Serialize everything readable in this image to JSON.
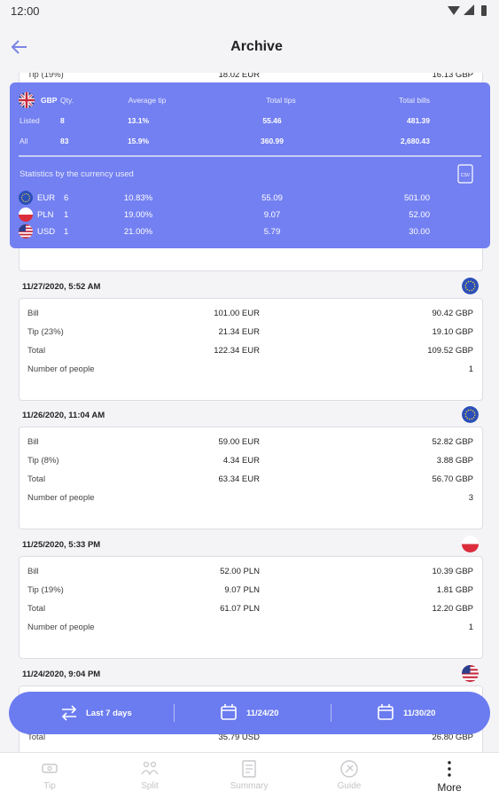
{
  "status": {
    "time": "12:00"
  },
  "header": {
    "title": "Archive"
  },
  "partial_row": {
    "label": "Tip (19%)",
    "local": "18.02 EUR",
    "gbp": "16.13 GBP"
  },
  "summary": {
    "columns": [
      "GBP",
      "Qty.",
      "Average tip",
      "Total tips",
      "Total bills"
    ],
    "rows": [
      [
        "Listed",
        "8",
        "13.1%",
        "55.46",
        "481.39"
      ],
      [
        "All",
        "83",
        "15.9%",
        "360.99",
        "2,680.43"
      ]
    ],
    "section_title": "Statistics by the currency used",
    "currencies": [
      [
        "EUR",
        "6",
        "10.83%",
        "55.09",
        "501.00"
      ],
      [
        "PLN",
        "1",
        "19.00%",
        "9.07",
        "52.00"
      ],
      [
        "USD",
        "1",
        "21.00%",
        "5.79",
        "30.00"
      ]
    ]
  },
  "entries": [
    {
      "date": "11/27/2020, 5:52 AM",
      "rows": [
        {
          "label": "Bill",
          "local": "101.00 EUR",
          "gbp": "90.42 GBP"
        },
        {
          "label": "Tip (23%)",
          "local": "21.34 EUR",
          "gbp": "19.10 GBP"
        },
        {
          "label": "Total",
          "local": "122.34 EUR",
          "gbp": "109.52 GBP"
        }
      ],
      "people_label": "Number of people",
      "people": "1"
    },
    {
      "date": "11/26/2020, 11:04 AM",
      "rows": [
        {
          "label": "Bill",
          "local": "59.00 EUR",
          "gbp": "52.82 GBP"
        },
        {
          "label": "Tip (8%)",
          "local": "4.34 EUR",
          "gbp": "3.88 GBP"
        },
        {
          "label": "Total",
          "local": "63.34 EUR",
          "gbp": "56.70 GBP"
        }
      ],
      "people_label": "Number of people",
      "people": "3"
    },
    {
      "date": "11/25/2020, 5:33 PM",
      "rows": [
        {
          "label": "Bill",
          "local": "52.00 PLN",
          "gbp": "10.39 GBP"
        },
        {
          "label": "Tip (19%)",
          "local": "9.07 PLN",
          "gbp": "1.81 GBP"
        },
        {
          "label": "Total",
          "local": "61.07 PLN",
          "gbp": "12.20 GBP"
        }
      ],
      "people_label": "Number of people",
      "people": "1"
    },
    {
      "date": "11/24/2020, 9:04 PM",
      "rows": [
        {
          "label": "Total",
          "local": "35.79 USD",
          "gbp": "26.80 GBP"
        }
      ]
    }
  ],
  "filter": {
    "range": "Last 7 days",
    "from": "11/24/20",
    "to": "11/30/20"
  },
  "nav": [
    "Tip",
    "Split",
    "Summary",
    "Guide",
    "More"
  ]
}
